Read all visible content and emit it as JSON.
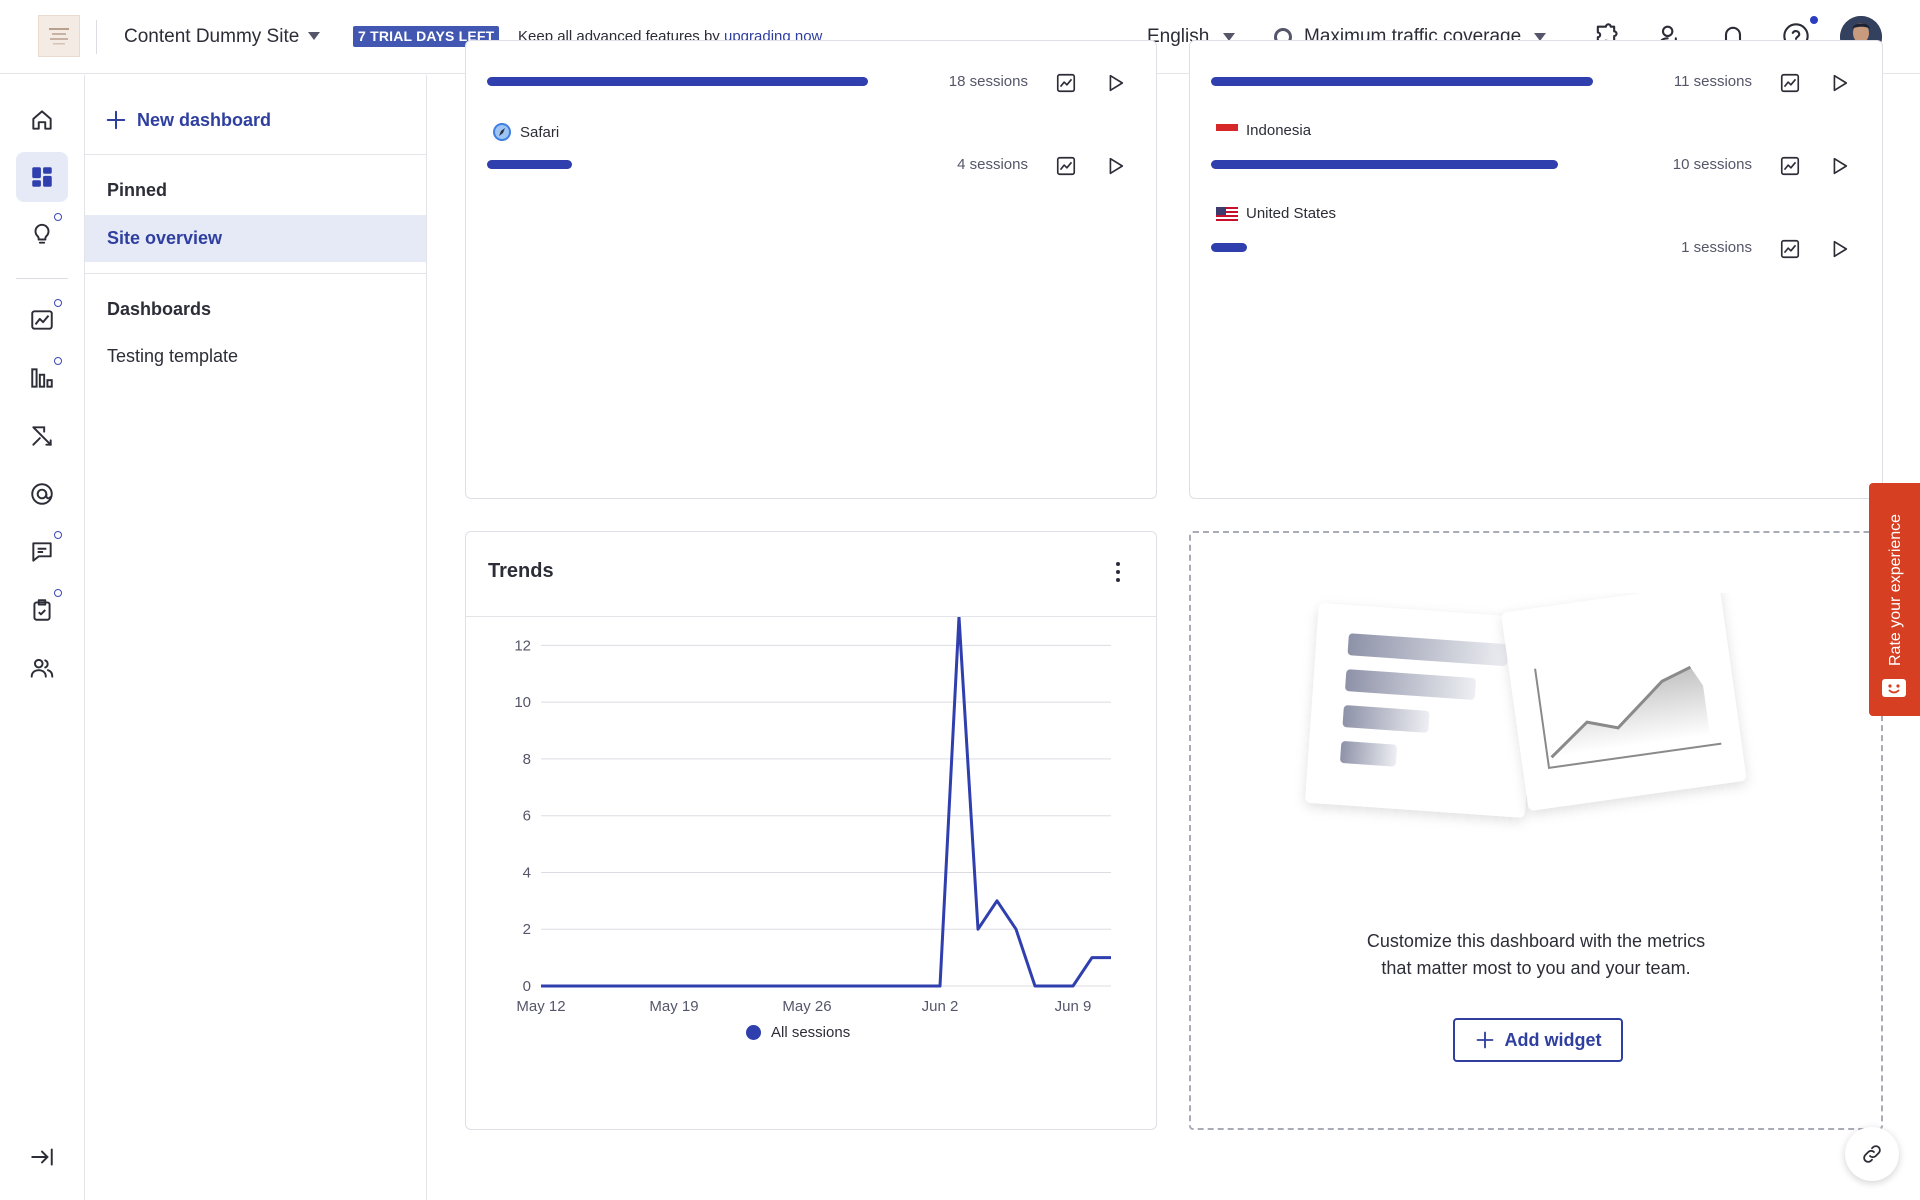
{
  "header": {
    "site_name": "Content Dummy Site",
    "trial_badge": "7 TRIAL DAYS LEFT",
    "trial_text": "Keep all advanced features by",
    "trial_link": "upgrading now",
    "language": "English",
    "coverage": "Maximum traffic coverage",
    "icons": [
      "integrations-icon",
      "invite-user-icon",
      "bell-icon",
      "help-icon",
      "avatar"
    ],
    "accent": "#2f3fae"
  },
  "rail": {
    "items": [
      "home-icon",
      "dashboards-icon",
      "insights-icon",
      "trends-icon",
      "funnels-icon",
      "journeys-icon",
      "surveys-icon",
      "feedback-icon",
      "tasks-icon",
      "users-icon"
    ],
    "collapse": "collapse-sidebar-icon"
  },
  "sidebar": {
    "new_dashboard": "New dashboard",
    "pinned_heading": "Pinned",
    "pinned_items": [
      "Site overview"
    ],
    "dashboards_heading": "Dashboards",
    "dashboard_items": [
      "Testing template"
    ]
  },
  "browser_card": {
    "rows": [
      {
        "label": "",
        "sessions": "18 sessions",
        "fraction": 1.0
      },
      {
        "label": "Safari",
        "sessions": "4 sessions",
        "fraction": 0.222
      }
    ]
  },
  "country_card": {
    "rows": [
      {
        "label": "",
        "sessions": "11 sessions",
        "fraction": 1.0
      },
      {
        "label": "Indonesia",
        "sessions": "10 sessions",
        "fraction": 0.909
      },
      {
        "label": "United States",
        "sessions": "1 sessions",
        "fraction": 0.091
      }
    ]
  },
  "trends": {
    "title": "Trends",
    "legend": "All sessions"
  },
  "chart_data": {
    "type": "line",
    "title": "Trends",
    "xlabel": "",
    "ylabel": "",
    "x_ticks": [
      "May 12",
      "May 19",
      "May 26",
      "Jun 2",
      "Jun 9"
    ],
    "y_ticks": [
      0,
      2,
      4,
      6,
      8,
      10,
      12
    ],
    "ylim": [
      0,
      13
    ],
    "grid": true,
    "legend_position": "bottom",
    "series": [
      {
        "name": "All sessions",
        "color": "#2f3fae",
        "x": [
          "May 12",
          "May 13",
          "May 14",
          "May 15",
          "May 16",
          "May 17",
          "May 18",
          "May 19",
          "May 20",
          "May 21",
          "May 22",
          "May 23",
          "May 24",
          "May 25",
          "May 26",
          "May 27",
          "May 28",
          "May 29",
          "May 30",
          "May 31",
          "Jun 1",
          "Jun 2",
          "Jun 3",
          "Jun 4",
          "Jun 5",
          "Jun 6",
          "Jun 7",
          "Jun 8",
          "Jun 9",
          "Jun 10",
          "Jun 11"
        ],
        "values": [
          0,
          0,
          0,
          0,
          0,
          0,
          0,
          0,
          0,
          0,
          0,
          0,
          0,
          0,
          0,
          0,
          0,
          0,
          0,
          0,
          0,
          0,
          13,
          2,
          3,
          2,
          0,
          0,
          0,
          1,
          1
        ]
      }
    ]
  },
  "empty_widget": {
    "text_line1": "Customize this dashboard with the metrics",
    "text_line2": "that matter most to you and your team.",
    "button": "Add widget"
  },
  "feedback_tab": {
    "label": "Rate your experience",
    "color": "#d63f21"
  }
}
